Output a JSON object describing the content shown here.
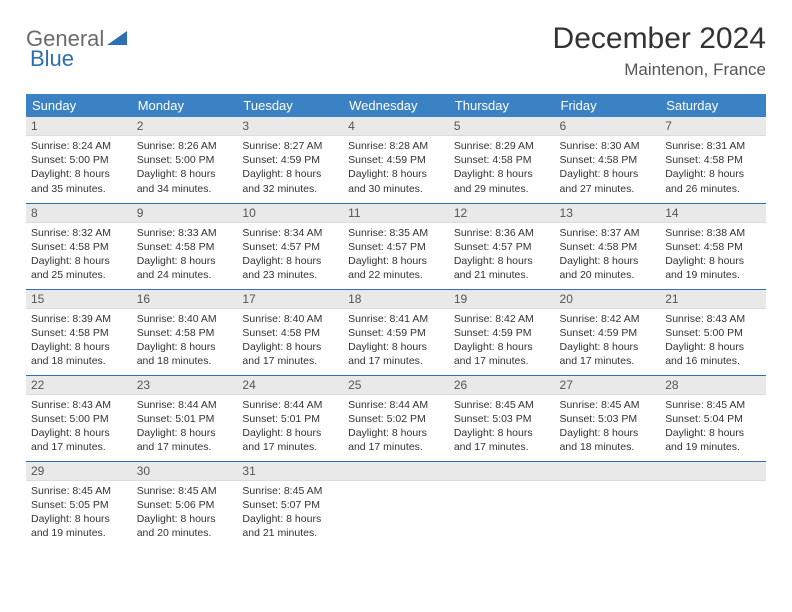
{
  "brand": {
    "part1": "General",
    "part2": "Blue",
    "color1": "#6b6b6b",
    "color2": "#2d6fb5"
  },
  "title": "December 2024",
  "location": "Maintenon, France",
  "colors": {
    "header_bg": "#3b82c4",
    "header_fg": "#ffffff",
    "daynum_bg": "#e9e9e9",
    "row_border": "#2d6fb5"
  },
  "weekdays": [
    "Sunday",
    "Monday",
    "Tuesday",
    "Wednesday",
    "Thursday",
    "Friday",
    "Saturday"
  ],
  "weeks": [
    [
      {
        "n": "1",
        "sunrise": "8:24 AM",
        "sunset": "5:00 PM",
        "daylight": "8 hours and 35 minutes."
      },
      {
        "n": "2",
        "sunrise": "8:26 AM",
        "sunset": "5:00 PM",
        "daylight": "8 hours and 34 minutes."
      },
      {
        "n": "3",
        "sunrise": "8:27 AM",
        "sunset": "4:59 PM",
        "daylight": "8 hours and 32 minutes."
      },
      {
        "n": "4",
        "sunrise": "8:28 AM",
        "sunset": "4:59 PM",
        "daylight": "8 hours and 30 minutes."
      },
      {
        "n": "5",
        "sunrise": "8:29 AM",
        "sunset": "4:58 PM",
        "daylight": "8 hours and 29 minutes."
      },
      {
        "n": "6",
        "sunrise": "8:30 AM",
        "sunset": "4:58 PM",
        "daylight": "8 hours and 27 minutes."
      },
      {
        "n": "7",
        "sunrise": "8:31 AM",
        "sunset": "4:58 PM",
        "daylight": "8 hours and 26 minutes."
      }
    ],
    [
      {
        "n": "8",
        "sunrise": "8:32 AM",
        "sunset": "4:58 PM",
        "daylight": "8 hours and 25 minutes."
      },
      {
        "n": "9",
        "sunrise": "8:33 AM",
        "sunset": "4:58 PM",
        "daylight": "8 hours and 24 minutes."
      },
      {
        "n": "10",
        "sunrise": "8:34 AM",
        "sunset": "4:57 PM",
        "daylight": "8 hours and 23 minutes."
      },
      {
        "n": "11",
        "sunrise": "8:35 AM",
        "sunset": "4:57 PM",
        "daylight": "8 hours and 22 minutes."
      },
      {
        "n": "12",
        "sunrise": "8:36 AM",
        "sunset": "4:57 PM",
        "daylight": "8 hours and 21 minutes."
      },
      {
        "n": "13",
        "sunrise": "8:37 AM",
        "sunset": "4:58 PM",
        "daylight": "8 hours and 20 minutes."
      },
      {
        "n": "14",
        "sunrise": "8:38 AM",
        "sunset": "4:58 PM",
        "daylight": "8 hours and 19 minutes."
      }
    ],
    [
      {
        "n": "15",
        "sunrise": "8:39 AM",
        "sunset": "4:58 PM",
        "daylight": "8 hours and 18 minutes."
      },
      {
        "n": "16",
        "sunrise": "8:40 AM",
        "sunset": "4:58 PM",
        "daylight": "8 hours and 18 minutes."
      },
      {
        "n": "17",
        "sunrise": "8:40 AM",
        "sunset": "4:58 PM",
        "daylight": "8 hours and 17 minutes."
      },
      {
        "n": "18",
        "sunrise": "8:41 AM",
        "sunset": "4:59 PM",
        "daylight": "8 hours and 17 minutes."
      },
      {
        "n": "19",
        "sunrise": "8:42 AM",
        "sunset": "4:59 PM",
        "daylight": "8 hours and 17 minutes."
      },
      {
        "n": "20",
        "sunrise": "8:42 AM",
        "sunset": "4:59 PM",
        "daylight": "8 hours and 17 minutes."
      },
      {
        "n": "21",
        "sunrise": "8:43 AM",
        "sunset": "5:00 PM",
        "daylight": "8 hours and 16 minutes."
      }
    ],
    [
      {
        "n": "22",
        "sunrise": "8:43 AM",
        "sunset": "5:00 PM",
        "daylight": "8 hours and 17 minutes."
      },
      {
        "n": "23",
        "sunrise": "8:44 AM",
        "sunset": "5:01 PM",
        "daylight": "8 hours and 17 minutes."
      },
      {
        "n": "24",
        "sunrise": "8:44 AM",
        "sunset": "5:01 PM",
        "daylight": "8 hours and 17 minutes."
      },
      {
        "n": "25",
        "sunrise": "8:44 AM",
        "sunset": "5:02 PM",
        "daylight": "8 hours and 17 minutes."
      },
      {
        "n": "26",
        "sunrise": "8:45 AM",
        "sunset": "5:03 PM",
        "daylight": "8 hours and 17 minutes."
      },
      {
        "n": "27",
        "sunrise": "8:45 AM",
        "sunset": "5:03 PM",
        "daylight": "8 hours and 18 minutes."
      },
      {
        "n": "28",
        "sunrise": "8:45 AM",
        "sunset": "5:04 PM",
        "daylight": "8 hours and 19 minutes."
      }
    ],
    [
      {
        "n": "29",
        "sunrise": "8:45 AM",
        "sunset": "5:05 PM",
        "daylight": "8 hours and 19 minutes."
      },
      {
        "n": "30",
        "sunrise": "8:45 AM",
        "sunset": "5:06 PM",
        "daylight": "8 hours and 20 minutes."
      },
      {
        "n": "31",
        "sunrise": "8:45 AM",
        "sunset": "5:07 PM",
        "daylight": "8 hours and 21 minutes."
      },
      null,
      null,
      null,
      null
    ]
  ],
  "labels": {
    "sunrise": "Sunrise: ",
    "sunset": "Sunset: ",
    "daylight": "Daylight: "
  }
}
